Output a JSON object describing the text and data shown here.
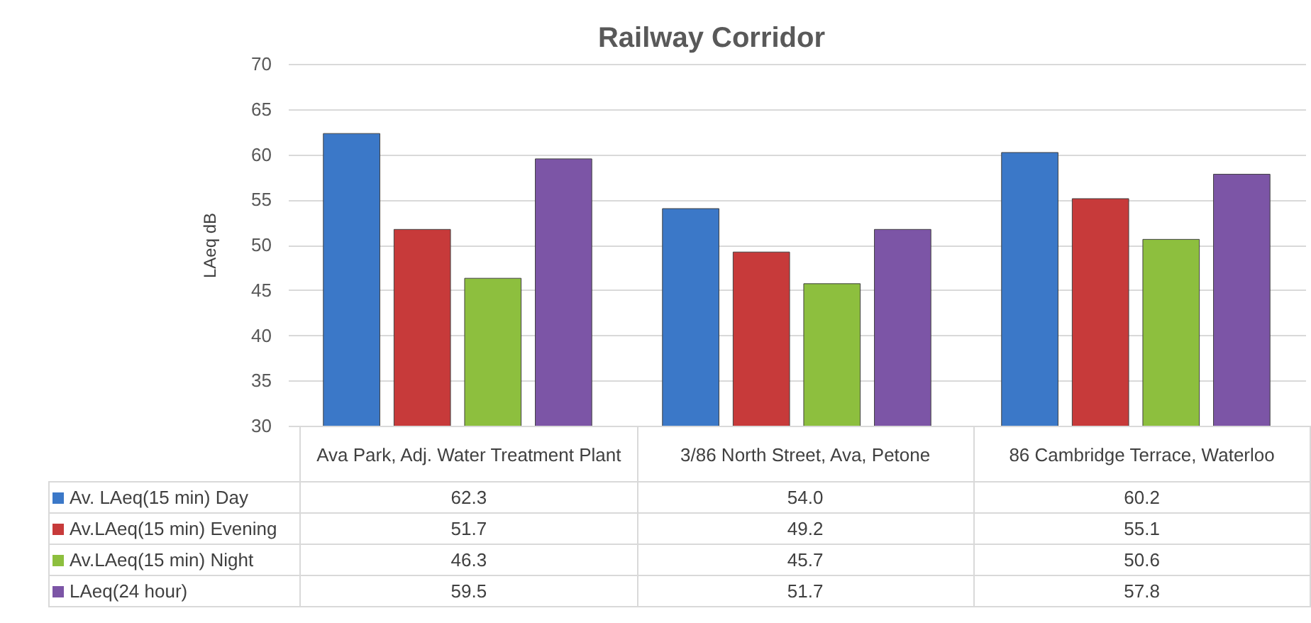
{
  "chart_data": {
    "type": "bar",
    "title": "Railway Corridor",
    "ylabel": "LAeq  dB",
    "categories": [
      "Ava Park,  Adj. Water Treatment Plant",
      "3/86 North Street, Ava, Petone",
      "86 Cambridge Terrace, Waterloo"
    ],
    "series": [
      {
        "name": "Av. LAeq(15 min) Day",
        "color": "#3b78c8",
        "values": [
          62.3,
          54.0,
          60.2
        ],
        "value_labels": [
          "62.3",
          "54.0",
          "60.2"
        ]
      },
      {
        "name": "Av.LAeq(15 min) Evening",
        "color": "#c73a3a",
        "values": [
          51.7,
          49.2,
          55.1
        ],
        "value_labels": [
          "51.7",
          "49.2",
          "55.1"
        ]
      },
      {
        "name": "Av.LAeq(15 min) Night",
        "color": "#8dbf3e",
        "values": [
          46.3,
          45.7,
          50.6
        ],
        "value_labels": [
          "46.3",
          "45.7",
          "50.6"
        ]
      },
      {
        "name": "LAeq(24 hour)",
        "color": "#7c55a6",
        "values": [
          59.5,
          51.7,
          57.8
        ],
        "value_labels": [
          "59.5",
          "51.7",
          "57.8"
        ]
      }
    ],
    "ylim": [
      30,
      70
    ],
    "yticks": [
      30,
      35,
      40,
      45,
      50,
      55,
      60,
      65,
      70
    ],
    "grid": "y",
    "legend": "bottom"
  }
}
